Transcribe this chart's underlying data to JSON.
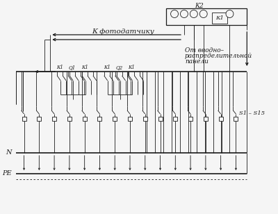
{
  "bg": "#f5f5f5",
  "lc": "#1a1a1a",
  "tc": "#1a1a1a",
  "fw": 4.0,
  "fh": 3.08,
  "dpi": 100,
  "lbl_foto": "К фотодатчику",
  "lbl_ot1": "От вводно–",
  "lbl_ot2": "распределительной",
  "lbl_ot3": "панели",
  "lbl_K2": "К2",
  "lbl_K1": "К1",
  "lbl_N": "N",
  "lbl_PE": "PE",
  "lbl_S": "S1 – S15",
  "lbl_K1a": "К1",
  "lbl_Q1": "Q1",
  "lbl_K1b": "К1",
  "lbl_K1c": "К1",
  "lbl_Q2": "Q2",
  "lbl_K1d": "К1",
  "n_breakers": 15
}
